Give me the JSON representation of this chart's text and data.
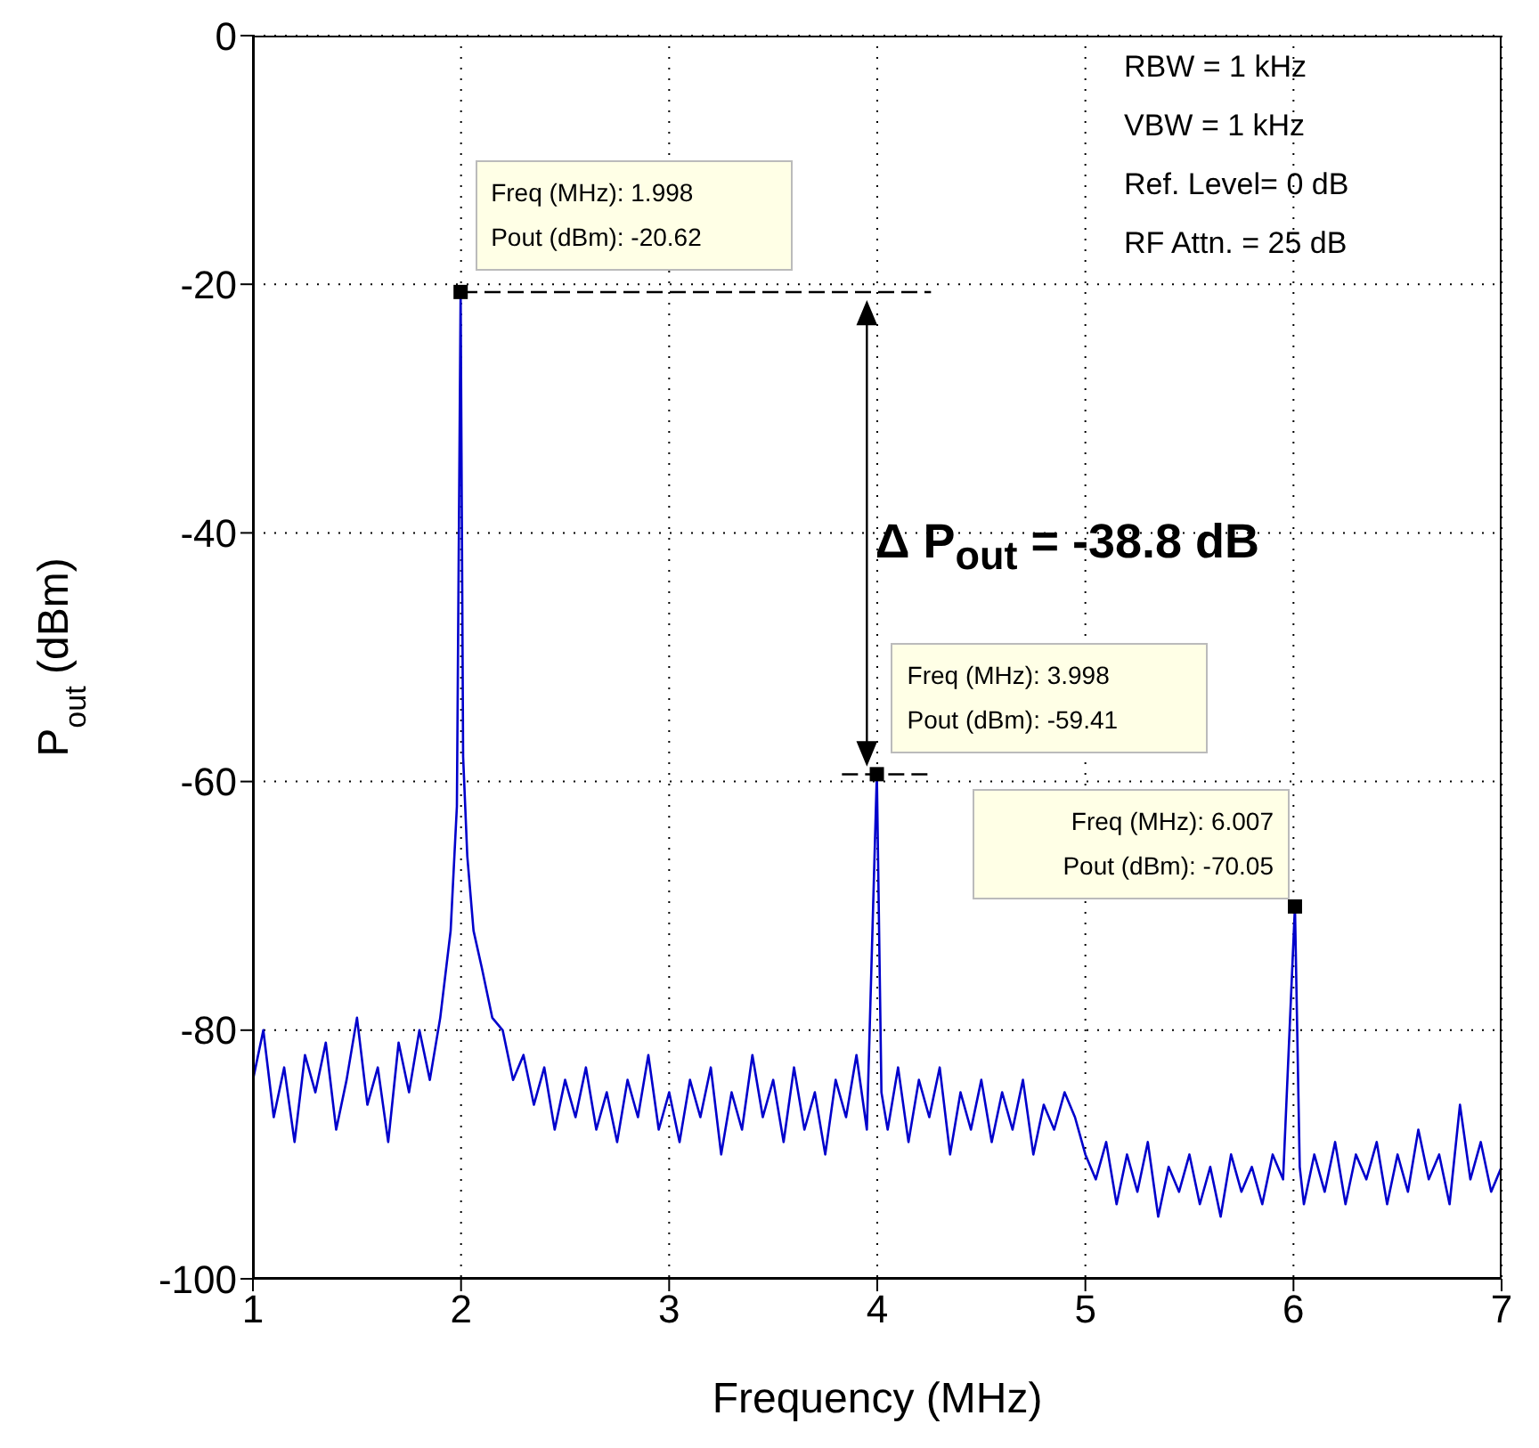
{
  "chart_data": {
    "type": "line",
    "xlabel": "Frequency (MHz)",
    "ylabel": "P$_{out}$ (dBm)",
    "xlim": [
      1,
      7
    ],
    "xticks": [
      1,
      2,
      3,
      4,
      5,
      6,
      7
    ],
    "ylim": [
      -100,
      0
    ],
    "yticks": [
      -100,
      -80,
      -60,
      -40,
      -20,
      0
    ],
    "grid": true,
    "series": [
      {
        "color": "#0000cc",
        "x": [
          1.0,
          1.05,
          1.1,
          1.15,
          1.2,
          1.25,
          1.3,
          1.35,
          1.4,
          1.45,
          1.5,
          1.55,
          1.6,
          1.65,
          1.7,
          1.75,
          1.8,
          1.85,
          1.9,
          1.95,
          1.98,
          1.998,
          2.01,
          2.03,
          2.06,
          2.1,
          2.15,
          2.2,
          2.25,
          2.3,
          2.35,
          2.4,
          2.45,
          2.5,
          2.55,
          2.6,
          2.65,
          2.7,
          2.75,
          2.8,
          2.85,
          2.9,
          2.95,
          3.0,
          3.05,
          3.1,
          3.15,
          3.2,
          3.25,
          3.3,
          3.35,
          3.4,
          3.45,
          3.5,
          3.55,
          3.6,
          3.65,
          3.7,
          3.75,
          3.8,
          3.85,
          3.9,
          3.95,
          3.998,
          4.02,
          4.05,
          4.1,
          4.15,
          4.2,
          4.25,
          4.3,
          4.35,
          4.4,
          4.45,
          4.5,
          4.55,
          4.6,
          4.65,
          4.7,
          4.75,
          4.8,
          4.85,
          4.9,
          4.95,
          5.0,
          5.05,
          5.1,
          5.15,
          5.2,
          5.25,
          5.3,
          5.35,
          5.4,
          5.45,
          5.5,
          5.55,
          5.6,
          5.65,
          5.7,
          5.75,
          5.8,
          5.85,
          5.9,
          5.95,
          6.007,
          6.03,
          6.05,
          6.1,
          6.15,
          6.2,
          6.25,
          6.3,
          6.35,
          6.4,
          6.45,
          6.5,
          6.55,
          6.6,
          6.65,
          6.7,
          6.75,
          6.8,
          6.85,
          6.9,
          6.95,
          7.0
        ],
        "values": [
          -84,
          -80,
          -87,
          -83,
          -89,
          -82,
          -85,
          -81,
          -88,
          -84,
          -79,
          -86,
          -83,
          -89,
          -81,
          -85,
          -80,
          -84,
          -79,
          -72,
          -62,
          -20.62,
          -58,
          -66,
          -72,
          -75,
          -79,
          -80,
          -84,
          -82,
          -86,
          -83,
          -88,
          -84,
          -87,
          -83,
          -88,
          -85,
          -89,
          -84,
          -87,
          -82,
          -88,
          -85,
          -89,
          -84,
          -87,
          -83,
          -90,
          -85,
          -88,
          -82,
          -87,
          -84,
          -89,
          -83,
          -88,
          -85,
          -90,
          -84,
          -87,
          -82,
          -88,
          -59.41,
          -85,
          -88,
          -83,
          -89,
          -84,
          -87,
          -83,
          -90,
          -85,
          -88,
          -84,
          -89,
          -85,
          -88,
          -84,
          -90,
          -86,
          -88,
          -85,
          -87,
          -90,
          -92,
          -89,
          -94,
          -90,
          -93,
          -89,
          -95,
          -91,
          -93,
          -90,
          -94,
          -91,
          -95,
          -90,
          -93,
          -91,
          -94,
          -90,
          -92,
          -70.05,
          -91,
          -94,
          -90,
          -93,
          -89,
          -94,
          -90,
          -92,
          -89,
          -94,
          -90,
          -93,
          -88,
          -92,
          -90,
          -94,
          -86,
          -92,
          -89,
          -93,
          -91
        ]
      },
      {
        "type": "scatter",
        "color": "#000000",
        "marker": "square",
        "x": [
          1.998,
          3.998,
          6.007
        ],
        "values": [
          -20.62,
          -59.41,
          -70.05
        ]
      }
    ],
    "annotations": [
      {
        "text": "Freq (MHz): 1.998\nPout (dBm): -20.62",
        "x": 1.998,
        "y": -20.62
      },
      {
        "text": "Freq (MHz): 3.998\nPout (dBm): -59.41",
        "x": 3.998,
        "y": -59.41
      },
      {
        "text": "Freq (MHz): 6.007\nPout (dBm): -70.05",
        "x": 6.007,
        "y": -70.05
      },
      "Δ P$_{out}$ = -38.8 dB",
      "RBW = 1 kHz",
      "VBW = 1 kHz",
      "Ref. Level= 0 dB",
      "RF Attn. = 25 dB"
    ]
  }
}
